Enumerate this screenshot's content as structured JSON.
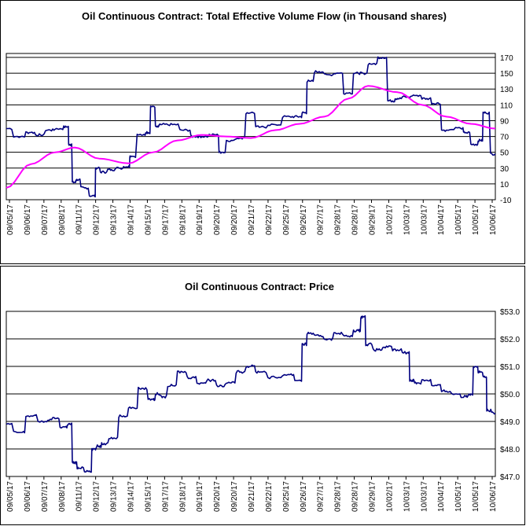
{
  "chart_data": [
    {
      "type": "line",
      "title": "Oil Continuous Contract: Total Effective Volume Flow (in Thousand shares)",
      "xlabel": "",
      "ylabel": "",
      "ylim": [
        -10,
        175
      ],
      "y_ticks": [
        "170",
        "150",
        "130",
        "110",
        "90",
        "70",
        "50",
        "30",
        "10",
        "-10"
      ],
      "x_ticks": [
        "09/05/17",
        "09/06/17",
        "09/07/17",
        "09/08/17",
        "09/11/17",
        "09/12/17",
        "09/13/17",
        "09/14/17",
        "09/15/17",
        "09/17/17",
        "09/18/17",
        "09/19/17",
        "09/20/17",
        "09/20/17",
        "09/21/17",
        "09/22/17",
        "09/25/17",
        "09/26/17",
        "09/27/17",
        "09/28/17",
        "09/28/17",
        "09/29/17",
        "10/02/17",
        "10/03/17",
        "10/03/17",
        "10/04/17",
        "10/05/17",
        "10/05/17",
        "10/06/17"
      ],
      "grid": true,
      "legend": "none",
      "series": [
        {
          "color": "#000080",
          "x": [
            0,
            0.03,
            0.05,
            0.07,
            0.09,
            0.11,
            0.125,
            0.13,
            0.14,
            0.145,
            0.16,
            0.18,
            0.185,
            0.2,
            0.215,
            0.23,
            0.25,
            0.255,
            0.28,
            0.29,
            0.3,
            0.31,
            0.315,
            0.34,
            0.37,
            0.385,
            0.4,
            0.43,
            0.44,
            0.46,
            0.48,
            0.5,
            0.52,
            0.55,
            0.58,
            0.6,
            0.61,
            0.62,
            0.64,
            0.66,
            0.68,
            0.7,
            0.72,
            0.73,
            0.75,
            0.77,
            0.79,
            0.8,
            0.82,
            0.84,
            0.86,
            0.88,
            0.9,
            0.93,
            0.94,
            0.96,
            0.97,
            0.98,
            1.0
          ],
          "values": [
            80,
            70,
            75,
            72,
            78,
            80,
            82,
            60,
            12,
            15,
            5,
            -5,
            30,
            25,
            28,
            30,
            32,
            45,
            72,
            75,
            108,
            82,
            85,
            85,
            78,
            70,
            70,
            72,
            50,
            65,
            68,
            100,
            82,
            85,
            95,
            95,
            100,
            140,
            152,
            148,
            150,
            125,
            150,
            150,
            162,
            170,
            115,
            118,
            120,
            122,
            118,
            112,
            78,
            80,
            75,
            60,
            65,
            100,
            48
          ]
        },
        {
          "color": "#FF00FF",
          "x": [
            0,
            0.05,
            0.1,
            0.14,
            0.19,
            0.25,
            0.3,
            0.35,
            0.4,
            0.45,
            0.5,
            0.55,
            0.6,
            0.65,
            0.7,
            0.74,
            0.8,
            0.85,
            0.9,
            0.95,
            1.0
          ],
          "values": [
            5,
            35,
            50,
            56,
            42,
            36,
            50,
            65,
            72,
            70,
            68,
            78,
            86,
            95,
            118,
            134,
            126,
            110,
            95,
            86,
            80
          ]
        }
      ]
    },
    {
      "type": "line",
      "title": "Oil Continuous Contract: Price",
      "xlabel": "",
      "ylabel": "",
      "ylim": [
        47.0,
        53.0
      ],
      "y_ticks": [
        "$53.0",
        "$52.0",
        "$51.0",
        "$50.0",
        "$49.0",
        "$48.0",
        "$47.0"
      ],
      "x_ticks": [
        "09/05/17",
        "09/06/17",
        "09/07/17",
        "09/08/17",
        "09/11/17",
        "09/12/17",
        "09/13/17",
        "09/14/17",
        "09/15/17",
        "09/17/17",
        "09/18/17",
        "09/19/17",
        "09/20/17",
        "09/20/17",
        "09/21/17",
        "09/22/17",
        "09/25/17",
        "09/26/17",
        "09/27/17",
        "09/28/17",
        "09/28/17",
        "09/29/17",
        "10/02/17",
        "10/03/17",
        "10/03/17",
        "10/04/17",
        "10/05/17",
        "10/05/17",
        "10/06/17"
      ],
      "grid": true,
      "legend": "none",
      "series": [
        {
          "color": "#000080",
          "x": [
            0,
            0.03,
            0.05,
            0.08,
            0.1,
            0.12,
            0.13,
            0.14,
            0.15,
            0.17,
            0.18,
            0.19,
            0.2,
            0.22,
            0.24,
            0.26,
            0.28,
            0.3,
            0.31,
            0.32,
            0.34,
            0.36,
            0.38,
            0.4,
            0.42,
            0.44,
            0.46,
            0.48,
            0.5,
            0.52,
            0.55,
            0.58,
            0.6,
            0.61,
            0.62,
            0.64,
            0.66,
            0.68,
            0.7,
            0.72,
            0.73,
            0.74,
            0.76,
            0.78,
            0.8,
            0.82,
            0.83,
            0.84,
            0.86,
            0.88,
            0.9,
            0.92,
            0.94,
            0.95,
            0.96,
            0.97,
            0.98,
            0.985,
            1.0
          ],
          "values": [
            48.9,
            48.6,
            49.2,
            49.0,
            49.1,
            48.8,
            48.9,
            47.5,
            47.3,
            47.2,
            48.0,
            48.1,
            48.2,
            48.4,
            49.2,
            49.5,
            50.2,
            49.8,
            50.0,
            49.9,
            50.3,
            50.8,
            50.6,
            50.4,
            50.5,
            50.3,
            50.4,
            50.8,
            51.0,
            50.8,
            50.6,
            50.7,
            50.5,
            51.8,
            52.2,
            52.1,
            52.0,
            52.2,
            52.1,
            52.3,
            52.8,
            51.8,
            51.6,
            51.7,
            51.6,
            51.5,
            50.5,
            50.4,
            50.5,
            50.3,
            50.1,
            50.0,
            49.9,
            50.0,
            51.0,
            50.8,
            50.6,
            49.4,
            49.3
          ]
        }
      ]
    }
  ]
}
